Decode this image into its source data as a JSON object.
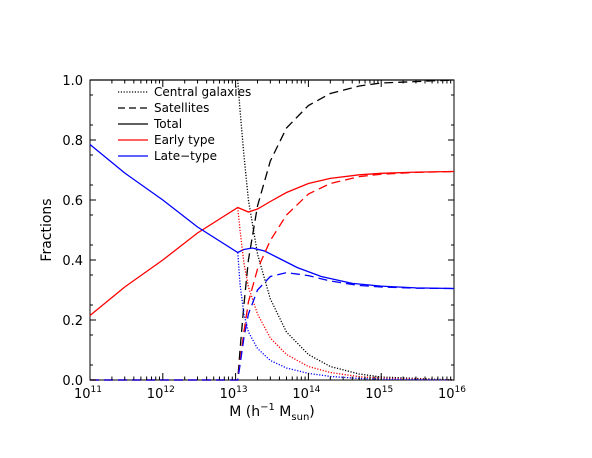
{
  "chart_data": {
    "type": "line",
    "title": "",
    "xlabel": {
      "main": "M (h",
      "exp": "−1",
      "mid": " M",
      "sub": "sun",
      "end": ")"
    },
    "ylabel": "Fractions",
    "xscale": "log",
    "xlim": [
      100000000000.0,
      1e+16
    ],
    "ylim": [
      0,
      1.0
    ],
    "x_ticks": [
      {
        "value": 100000000000.0,
        "base": "10",
        "exp": "11"
      },
      {
        "value": 1000000000000.0,
        "base": "10",
        "exp": "12"
      },
      {
        "value": 10000000000000.0,
        "base": "10",
        "exp": "13"
      },
      {
        "value": 100000000000000.0,
        "base": "10",
        "exp": "14"
      },
      {
        "value": 1000000000000000.0,
        "base": "10",
        "exp": "15"
      },
      {
        "value": 1e+16,
        "base": "10",
        "exp": "16"
      }
    ],
    "y_ticks": [
      "0.0",
      "0.2",
      "0.4",
      "0.6",
      "0.8",
      "1.0"
    ],
    "grid": false,
    "legend_position": "top-left",
    "legend": [
      {
        "label": "Central galaxies",
        "color": "#000000",
        "style": "dotted"
      },
      {
        "label": "Satellites",
        "color": "#000000",
        "style": "dashed"
      },
      {
        "label": "Total",
        "color": "#000000",
        "style": "solid"
      },
      {
        "label": "Early type",
        "color": "#ff0000",
        "style": "solid"
      },
      {
        "label": "Late−type",
        "color": "#0000ff",
        "style": "solid"
      }
    ],
    "series": [
      {
        "color": "#000000",
        "style": "solid",
        "x": [
          100000000000.0,
          1e+16
        ],
        "y": [
          1.0,
          1.0
        ]
      },
      {
        "color": "#000000",
        "style": "dotted",
        "x": [
          10700000000000.0,
          11500000000000.0,
          13000000000000.0,
          15000000000000.0,
          20000000000000.0,
          30000000000000.0,
          50000000000000.0,
          100000000000000.0,
          200000000000000.0,
          500000000000000.0,
          1000000000000000.0,
          1e+16
        ],
        "y": [
          1.0,
          0.9,
          0.75,
          0.6,
          0.42,
          0.27,
          0.16,
          0.085,
          0.045,
          0.02,
          0.01,
          0.0
        ]
      },
      {
        "color": "#000000",
        "style": "dashed",
        "x": [
          100000000000.0,
          10700000000000.0,
          11500000000000.0,
          13000000000000.0,
          15000000000000.0,
          20000000000000.0,
          30000000000000.0,
          50000000000000.0,
          100000000000000.0,
          200000000000000.0,
          500000000000000.0,
          1000000000000000.0,
          1e+16
        ],
        "y": [
          0.0,
          0.0,
          0.1,
          0.25,
          0.4,
          0.58,
          0.73,
          0.84,
          0.915,
          0.955,
          0.98,
          0.99,
          1.0
        ]
      },
      {
        "color": "#ff0000",
        "style": "solid",
        "x": [
          100000000000.0,
          300000000000.0,
          1000000000000.0,
          3000000000000.0,
          10700000000000.0,
          15000000000000.0,
          20000000000000.0,
          30000000000000.0,
          50000000000000.0,
          100000000000000.0,
          200000000000000.0,
          500000000000000.0,
          1000000000000000.0,
          3000000000000000.0,
          1e+16
        ],
        "y": [
          0.215,
          0.31,
          0.4,
          0.49,
          0.575,
          0.56,
          0.57,
          0.595,
          0.625,
          0.655,
          0.672,
          0.684,
          0.689,
          0.693,
          0.695
        ]
      },
      {
        "color": "#0000ff",
        "style": "solid",
        "x": [
          100000000000.0,
          300000000000.0,
          1000000000000.0,
          3000000000000.0,
          10700000000000.0,
          13000000000000.0,
          17000000000000.0,
          25000000000000.0,
          40000000000000.0,
          70000000000000.0,
          150000000000000.0,
          400000000000000.0,
          1000000000000000.0,
          3000000000000000.0,
          1e+16
        ],
        "y": [
          0.785,
          0.69,
          0.6,
          0.51,
          0.425,
          0.435,
          0.44,
          0.43,
          0.405,
          0.375,
          0.345,
          0.322,
          0.313,
          0.307,
          0.305
        ]
      },
      {
        "color": "#ff0000",
        "style": "dotted",
        "x": [
          10700000000000.0,
          11500000000000.0,
          13000000000000.0,
          15000000000000.0,
          20000000000000.0,
          30000000000000.0,
          50000000000000.0,
          100000000000000.0,
          200000000000000.0,
          500000000000000.0,
          1000000000000000.0,
          1e+16
        ],
        "y": [
          0.575,
          0.5,
          0.39,
          0.31,
          0.22,
          0.14,
          0.085,
          0.045,
          0.025,
          0.011,
          0.006,
          0.0
        ]
      },
      {
        "color": "#0000ff",
        "style": "dotted",
        "x": [
          10700000000000.0,
          11500000000000.0,
          13000000000000.0,
          15000000000000.0,
          20000000000000.0,
          30000000000000.0,
          50000000000000.0,
          100000000000000.0,
          200000000000000.0,
          500000000000000.0,
          1000000000000000.0,
          1e+16
        ],
        "y": [
          0.425,
          0.32,
          0.22,
          0.16,
          0.105,
          0.065,
          0.04,
          0.022,
          0.012,
          0.005,
          0.003,
          0.0
        ]
      },
      {
        "color": "#ff0000",
        "style": "dashed",
        "x": [
          100000000000.0,
          10700000000000.0,
          11500000000000.0,
          13000000000000.0,
          15000000000000.0,
          20000000000000.0,
          30000000000000.0,
          50000000000000.0,
          100000000000000.0,
          200000000000000.0,
          500000000000000.0,
          1000000000000000.0,
          3000000000000000.0,
          1e+16
        ],
        "y": [
          0.0,
          0.0,
          0.06,
          0.16,
          0.26,
          0.37,
          0.465,
          0.55,
          0.62,
          0.655,
          0.678,
          0.686,
          0.692,
          0.695
        ]
      },
      {
        "color": "#0000ff",
        "style": "dashed",
        "x": [
          100000000000.0,
          10700000000000.0,
          11500000000000.0,
          13000000000000.0,
          15000000000000.0,
          20000000000000.0,
          30000000000000.0,
          50000000000000.0,
          100000000000000.0,
          200000000000000.0,
          500000000000000.0,
          1000000000000000.0,
          3000000000000000.0,
          1e+16
        ],
        "y": [
          0.0,
          0.0,
          0.05,
          0.14,
          0.22,
          0.3,
          0.345,
          0.358,
          0.348,
          0.33,
          0.315,
          0.31,
          0.306,
          0.305
        ]
      }
    ]
  }
}
